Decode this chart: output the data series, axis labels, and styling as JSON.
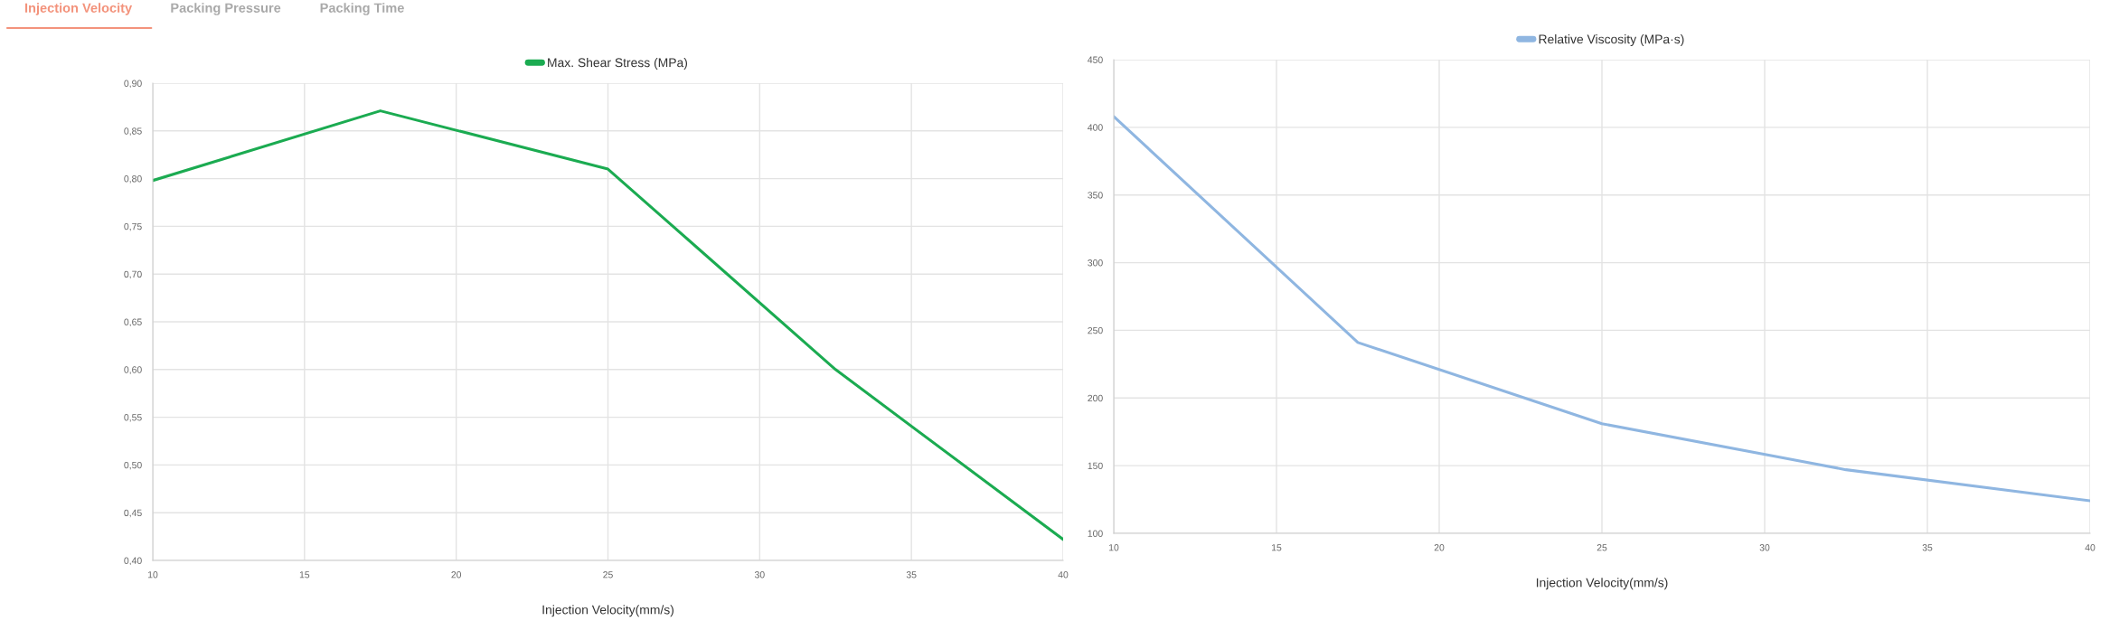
{
  "chart_data": [
    {
      "type": "line",
      "x": [
        10,
        17.5,
        25,
        32.5,
        40
      ],
      "series": [
        {
          "name": "Max. Shear Stress (MPa)",
          "color": "#1bab51",
          "values": [
            0.798,
            0.871,
            0.81,
            0.6,
            0.422
          ]
        }
      ],
      "xlabel": "Injection Velocity(mm/s)",
      "xlim": [
        10,
        40
      ],
      "xticks": [
        10,
        15,
        20,
        25,
        30,
        35,
        40
      ],
      "ylim": [
        0.4,
        0.9
      ],
      "yticks": [
        {
          "value": 0.4,
          "label": "0,40"
        },
        {
          "value": 0.45,
          "label": "0,45"
        },
        {
          "value": 0.5,
          "label": "0,50"
        },
        {
          "value": 0.55,
          "label": "0,55"
        },
        {
          "value": 0.6,
          "label": "0,60"
        },
        {
          "value": 0.65,
          "label": "0,65"
        },
        {
          "value": 0.7,
          "label": "0,70"
        },
        {
          "value": 0.75,
          "label": "0,75"
        },
        {
          "value": 0.8,
          "label": "0,80"
        },
        {
          "value": 0.85,
          "label": "0,85"
        },
        {
          "value": 0.9,
          "label": "0,90"
        }
      ],
      "grid": true,
      "legend": "top",
      "line_style": "solid",
      "annotations": [
        "Injection Velocity",
        "Packing Pressure",
        "Packing Time"
      ]
    },
    {
      "type": "line",
      "x": [
        10,
        17.5,
        25,
        32.5,
        40
      ],
      "series": [
        {
          "name": "Relative Viscosity (MPa·s)",
          "color": "#8fb6e1",
          "values": [
            408,
            241,
            181,
            147,
            124
          ]
        }
      ],
      "xlabel": "Injection Velocity(mm/s)",
      "xlim": [
        10,
        40
      ],
      "xticks": [
        10,
        15,
        20,
        25,
        30,
        35,
        40
      ],
      "ylim": [
        100,
        450
      ],
      "yticks": [
        100,
        150,
        200,
        250,
        300,
        350,
        400,
        450
      ],
      "grid": true,
      "legend": "top",
      "line_style": "solid"
    }
  ]
}
